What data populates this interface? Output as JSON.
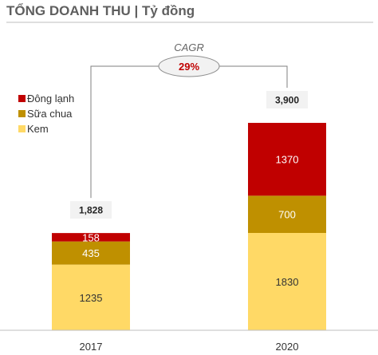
{
  "chart_data": {
    "type": "bar",
    "stacked": true,
    "title": "TỔNG DOANH THU | Tỷ đồng",
    "categories": [
      "2017",
      "2020"
    ],
    "series": [
      {
        "name": "Kem",
        "values": [
          1235,
          1830
        ],
        "color": "#ffd966",
        "label_color": "#333333"
      },
      {
        "name": "Sữa chua",
        "values": [
          435,
          700
        ],
        "color": "#bf9000",
        "label_color": "#ffffff"
      },
      {
        "name": "Đông lạnh",
        "values": [
          158,
          1370
        ],
        "color": "#c00000",
        "label_color": "#ffffff"
      }
    ],
    "totals": [
      "1,828",
      "3,900"
    ],
    "ylim": [
      0,
      3900
    ],
    "grid": false,
    "legend_position": "top-left",
    "legend_order": [
      "Đông lạnh",
      "Sữa chua",
      "Kem"
    ],
    "annotation": {
      "label": "CAGR",
      "value": "29%",
      "value_color": "#c00000"
    }
  }
}
